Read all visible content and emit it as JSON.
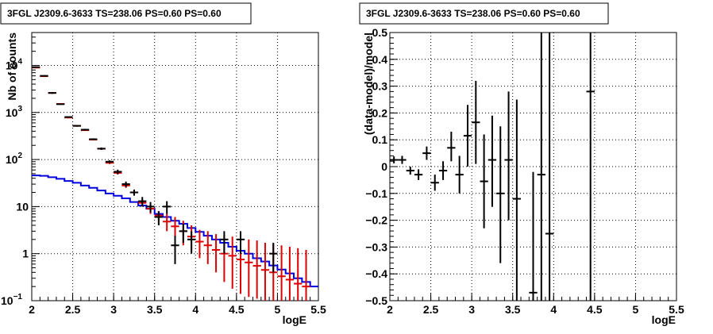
{
  "chart_data": [
    {
      "type": "line",
      "title": "3FGL J2309.6-3633 TS=238.06 PS=0.60 PS=0.60",
      "xlabel": "logE",
      "ylabel": "Nb of counts",
      "xlim": [
        2,
        5.5
      ],
      "ylim": [
        0.1,
        50000
      ],
      "yscale": "log",
      "grid": true,
      "x_ticks": [
        "2",
        "2.5",
        "3",
        "3.5",
        "4",
        "4.5",
        "5",
        "5.5"
      ],
      "y_ticks": [
        {
          "v": 0.1,
          "m": "10",
          "e": "−1"
        },
        {
          "v": 1,
          "m": "1",
          "e": ""
        },
        {
          "v": 10,
          "m": "10",
          "e": ""
        },
        {
          "v": 100,
          "m": "10",
          "e": "2"
        },
        {
          "v": 1000,
          "m": "10",
          "e": "3"
        },
        {
          "v": 10000,
          "m": "10",
          "e": "4"
        }
      ],
      "colors": {
        "data": "#000000",
        "model_points": "#dd0000",
        "background_model": "#0000dd"
      },
      "series": [
        {
          "role": "data",
          "x": [
            2.05,
            2.15,
            2.25,
            2.35,
            2.45,
            2.55,
            2.65,
            2.75,
            2.85,
            2.95,
            3.05,
            3.15,
            3.25,
            3.35,
            3.45,
            3.55,
            3.65,
            3.75,
            3.85,
            3.95,
            4.35,
            4.55,
            4.95
          ],
          "y": [
            9200,
            6000,
            2600,
            1500,
            800,
            520,
            430,
            270,
            170,
            90,
            55,
            30,
            20,
            13,
            10,
            6,
            10,
            1.5,
            3,
            2,
            2,
            2,
            1
          ],
          "ylow": [
            8900,
            5800,
            2500,
            1450,
            770,
            500,
            410,
            258,
            160,
            84,
            49,
            26,
            17,
            10,
            7.5,
            4,
            7,
            0.6,
            1.7,
            1,
            1,
            1,
            0.4
          ],
          "yhigh": [
            9500,
            6200,
            2700,
            1550,
            830,
            540,
            450,
            282,
            180,
            96,
            61,
            34,
            23,
            16,
            12.5,
            8,
            13,
            2.4,
            4.3,
            3,
            3,
            3,
            1.7
          ]
        },
        {
          "role": "model",
          "x": [
            2.05,
            2.15,
            2.25,
            2.35,
            2.45,
            2.55,
            2.65,
            2.75,
            2.85,
            2.95,
            3.05,
            3.15,
            3.25,
            3.35,
            3.45,
            3.55,
            3.65,
            3.75,
            3.85,
            3.95,
            4.05,
            4.15,
            4.25,
            4.35,
            4.45,
            4.55,
            4.65,
            4.75,
            4.85,
            4.95,
            5.05,
            5.15,
            5.25,
            5.35
          ],
          "y": [
            9000,
            5900,
            2600,
            1520,
            780,
            520,
            420,
            265,
            170,
            85,
            52,
            28,
            20,
            12,
            9,
            6.5,
            4.8,
            3.8,
            3,
            2.3,
            1.8,
            1.5,
            1.2,
            1.0,
            0.9,
            0.75,
            0.65,
            0.55,
            0.45,
            0.4,
            0.33,
            0.28,
            0.23,
            0.2
          ],
          "ylow": [
            8700,
            5700,
            2500,
            1470,
            750,
            500,
            405,
            255,
            162,
            80,
            48,
            25,
            17.5,
            10,
            7,
            5,
            3,
            2,
            1.5,
            1.1,
            0.8,
            0.6,
            0.4,
            0.25,
            0.18,
            0.14,
            0.12,
            0.11,
            0.1,
            0.1,
            0.1,
            0.1,
            0.1,
            0.1
          ],
          "yhigh": [
            9300,
            6100,
            2700,
            1570,
            810,
            540,
            435,
            275,
            178,
            90,
            56,
            31,
            22.5,
            14,
            11,
            8,
            7,
            6,
            5,
            4,
            3.2,
            3,
            2.6,
            2.5,
            2.3,
            2.2,
            2,
            1.9,
            1.7,
            1.6,
            1.5,
            1.4,
            1.3,
            1.2
          ]
        },
        {
          "role": "background_model",
          "x": [
            2.0,
            2.1,
            2.2,
            2.3,
            2.4,
            2.5,
            2.6,
            2.7,
            2.8,
            2.9,
            3.0,
            3.1,
            3.2,
            3.3,
            3.4,
            3.5,
            3.6,
            3.7,
            3.8,
            3.9,
            4.0,
            4.1,
            4.2,
            4.3,
            4.4,
            4.5,
            4.6,
            4.7,
            4.8,
            4.9,
            5.0,
            5.1,
            5.2,
            5.3,
            5.4,
            5.5
          ],
          "y": [
            46,
            45,
            42,
            39,
            35,
            32,
            28,
            25,
            22,
            19,
            17,
            15,
            12.5,
            10.5,
            9,
            7,
            6,
            5,
            4.3,
            3.5,
            2.9,
            2.4,
            2,
            1.7,
            1.4,
            1.15,
            1.0,
            0.8,
            0.68,
            0.56,
            0.46,
            0.38,
            0.3,
            0.25,
            0.2,
            0.17
          ]
        }
      ]
    },
    {
      "type": "scatter",
      "title": "3FGL J2309.6-3633 TS=238.06 PS=0.60 PS=0.60",
      "xlabel": "logE",
      "ylabel": "(data-model)/model",
      "xlim": [
        2,
        5.5
      ],
      "ylim": [
        -0.5,
        0.5
      ],
      "grid": true,
      "x_ticks": [
        "2",
        "2.5",
        "3",
        "3.5",
        "4",
        "4.5",
        "5",
        "5.5"
      ],
      "y_ticks": [
        "−0.5",
        "−0.4",
        "−0.3",
        "−0.2",
        "−0.1",
        "0",
        "0.1",
        "0.2",
        "0.3",
        "0.4",
        "0.5"
      ],
      "colors": {
        "data": "#000000"
      },
      "points": {
        "x": [
          2.05,
          2.15,
          2.25,
          2.35,
          2.45,
          2.55,
          2.65,
          2.75,
          2.85,
          2.95,
          3.05,
          3.15,
          3.25,
          3.35,
          3.45,
          3.55,
          3.75,
          3.85,
          3.95,
          4.45
        ],
        "y": [
          0.025,
          0.025,
          -0.015,
          -0.03,
          0.05,
          -0.06,
          -0.015,
          0.07,
          -0.03,
          0.115,
          0.165,
          -0.055,
          0.025,
          -0.1,
          0.025,
          -0.12,
          -0.47,
          -0.03,
          -0.25,
          0.28
        ],
        "ylow": [
          0.012,
          0.01,
          -0.03,
          -0.05,
          0.025,
          -0.09,
          -0.05,
          0.02,
          -0.1,
          0.0,
          0.01,
          -0.23,
          -0.15,
          -0.36,
          -0.2,
          -0.5,
          -0.5,
          -0.5,
          -0.5,
          -0.5
        ],
        "yhigh": [
          0.038,
          0.04,
          0.0,
          -0.01,
          0.075,
          -0.03,
          0.02,
          0.13,
          0.04,
          0.23,
          0.32,
          0.12,
          0.19,
          0.15,
          0.28,
          0.25,
          -0.02,
          0.5,
          0.5,
          0.5
        ]
      }
    }
  ]
}
